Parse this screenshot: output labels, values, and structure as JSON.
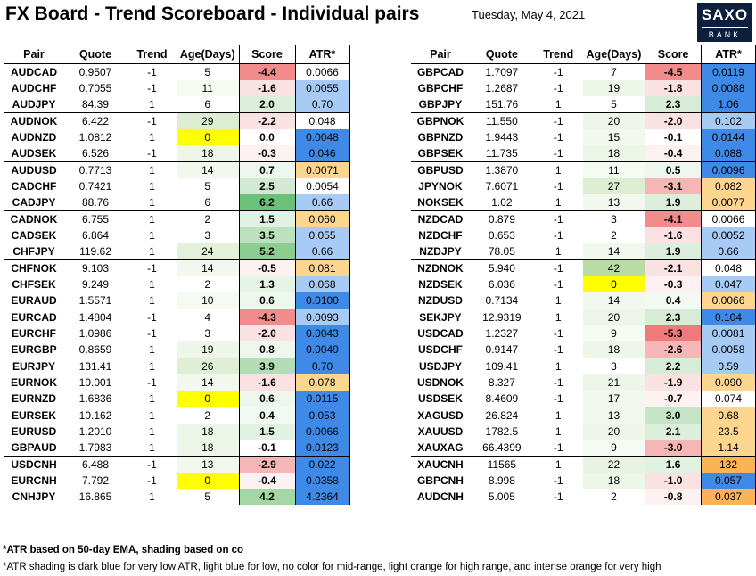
{
  "title": "FX Board - Trend Scoreboard - Individual pairs",
  "date": "Tuesday, May 4, 2021",
  "logo": {
    "line1": "SAXO",
    "line2": "BANK"
  },
  "headers": [
    "Pair",
    "Quote",
    "Trend",
    "Age(Days)",
    "Score",
    "ATR*"
  ],
  "colors": {
    "score_red_strong": "#f28b8b",
    "score_red_mid": "#f6b6b6",
    "score_red_light": "#fbe2e2",
    "score_green_strong": "#6cc07a",
    "score_green_mid": "#a3d7a4",
    "score_green_light": "#dcefdc",
    "atr_dark_blue": "#3f8ae6",
    "atr_light_blue": "#a7cbf5",
    "atr_light_orange": "#fcd58e",
    "atr_orange": "#fbb455",
    "age_yellow": "#ffff00"
  },
  "left_table": [
    {
      "pair": "AUDCAD",
      "quote": "0.9507",
      "trend": "-1",
      "age": "5",
      "score": "-4.4",
      "atr": "0.0066",
      "score_bg": "#f28b8b",
      "atr_bg": "#ffffff",
      "age_bg": "#ffffff"
    },
    {
      "pair": "AUDCHF",
      "quote": "0.7055",
      "trend": "-1",
      "age": "11",
      "score": "-1.6",
      "atr": "0.0055",
      "score_bg": "#fbe2e2",
      "atr_bg": "#a7cbf5",
      "age_bg": "#f5faf3"
    },
    {
      "pair": "AUDJPY",
      "quote": "84.39",
      "trend": "1",
      "age": "6",
      "score": "2.0",
      "atr": "0.70",
      "score_bg": "#dcefdc",
      "atr_bg": "#a7cbf5",
      "age_bg": "#ffffff"
    },
    {
      "pair": "AUDNOK",
      "quote": "6.422",
      "trect": "",
      "trend": "-1",
      "age": "29",
      "score": "-2.2",
      "atr": "0.048",
      "score_bg": "#fbe2e2",
      "atr_bg": "#ffffff",
      "age_bg": "#dcedd2"
    },
    {
      "pair": "AUDNZD",
      "quote": "1.0812",
      "trend": "1",
      "age": "0",
      "score": "0.0",
      "atr": "0.0048",
      "score_bg": "#ffffff",
      "atr_bg": "#3f8ae6",
      "age_bg": "#ffff00"
    },
    {
      "pair": "AUDSEK",
      "quote": "6.526",
      "trend": "-1",
      "age": "18",
      "score": "-0.3",
      "atr": "0.046",
      "score_bg": "#fdf1f1",
      "atr_bg": "#3f8ae6",
      "age_bg": "#eef6ea"
    },
    {
      "pair": "AUDUSD",
      "quote": "0.7713",
      "trend": "1",
      "age": "14",
      "score": "0.7",
      "atr": "0.0071",
      "score_bg": "#eef7ee",
      "atr_bg": "#fcd58e",
      "age_bg": "#f2f8ee"
    },
    {
      "pair": "CADCHF",
      "quote": "0.7421",
      "trend": "1",
      "age": "5",
      "score": "2.5",
      "atr": "0.0054",
      "score_bg": "#d2ead3",
      "atr_bg": "#ffffff",
      "age_bg": "#ffffff"
    },
    {
      "pair": "CADJPY",
      "quote": "88.76",
      "trend": "1",
      "age": "6",
      "score": "6.2",
      "atr": "0.66",
      "score_bg": "#6cc07a",
      "atr_bg": "#a7cbf5",
      "age_bg": "#ffffff"
    },
    {
      "pair": "CADNOK",
      "quote": "6.755",
      "trend": "1",
      "age": "2",
      "score": "1.5",
      "atr": "0.060",
      "score_bg": "#e2f2e2",
      "atr_bg": "#fcd58e",
      "age_bg": "#ffffff"
    },
    {
      "pair": "CADSEK",
      "quote": "6.864",
      "trend": "1",
      "age": "3",
      "score": "3.5",
      "atr": "0.055",
      "score_bg": "#bce1bd",
      "atr_bg": "#a7cbf5",
      "age_bg": "#ffffff"
    },
    {
      "pair": "CHFJPY",
      "quote": "119.62",
      "trend": "1",
      "age": "24",
      "score": "5.2",
      "atr": "0.66",
      "score_bg": "#8ccd92",
      "atr_bg": "#a7cbf5",
      "age_bg": "#e3f0da"
    },
    {
      "pair": "CHFNOK",
      "quote": "9.103",
      "trend": "-1",
      "age": "14",
      "score": "-0.5",
      "atr": "0.081",
      "score_bg": "#fdf1f1",
      "atr_bg": "#fcd58e",
      "age_bg": "#f2f8ee"
    },
    {
      "pair": "CHFSEK",
      "quote": "9.249",
      "trend": "1",
      "age": "2",
      "score": "1.3",
      "atr": "0.068",
      "score_bg": "#e6f4e6",
      "atr_bg": "#a7cbf5",
      "age_bg": "#ffffff"
    },
    {
      "pair": "EURAUD",
      "quote": "1.5571",
      "trend": "1",
      "age": "10",
      "score": "0.6",
      "atr": "0.0100",
      "score_bg": "#eef7ee",
      "atr_bg": "#3f8ae6",
      "age_bg": "#f5faf3"
    },
    {
      "pair": "EURCAD",
      "quote": "1.4804",
      "trend": "-1",
      "age": "4",
      "score": "-4.3",
      "atr": "0.0093",
      "score_bg": "#f28b8b",
      "atr_bg": "#a7cbf5",
      "age_bg": "#ffffff"
    },
    {
      "pair": "EURCHF",
      "quote": "1.0986",
      "trend": "-1",
      "age": "3",
      "score": "-2.0",
      "atr": "0.0043",
      "score_bg": "#fbe2e2",
      "atr_bg": "#3f8ae6",
      "age_bg": "#ffffff"
    },
    {
      "pair": "EURGBP",
      "quote": "0.8659",
      "trend": "1",
      "age": "19",
      "score": "0.8",
      "atr": "0.0049",
      "score_bg": "#eef7ee",
      "atr_bg": "#3f8ae6",
      "age_bg": "#eef6ea"
    },
    {
      "pair": "EURJPY",
      "quote": "131.41",
      "trend": "1",
      "age": "26",
      "score": "3.9",
      "atr": "0.70",
      "score_bg": "#b3ddb4",
      "atr_bg": "#3f8ae6",
      "age_bg": "#e0eed6"
    },
    {
      "pair": "EURNOK",
      "quote": "10.001",
      "trend": "-1",
      "age": "14",
      "score": "-1.6",
      "atr": "0.078",
      "score_bg": "#fbe2e2",
      "atr_bg": "#fcd58e",
      "age_bg": "#f2f8ee"
    },
    {
      "pair": "EURNZD",
      "quote": "1.6836",
      "trend": "1",
      "age": "0",
      "score": "0.6",
      "atr": "0.0115",
      "score_bg": "#eef7ee",
      "atr_bg": "#3f8ae6",
      "age_bg": "#ffff00"
    },
    {
      "pair": "EURSEK",
      "quote": "10.162",
      "trend": "1",
      "age": "2",
      "score": "0.4",
      "atr": "0.053",
      "score_bg": "#f2f9f2",
      "atr_bg": "#3f8ae6",
      "age_bg": "#ffffff"
    },
    {
      "pair": "EURUSD",
      "quote": "1.2010",
      "trend": "1",
      "age": "18",
      "score": "1.5",
      "atr": "0.0066",
      "score_bg": "#e2f2e2",
      "atr_bg": "#3f8ae6",
      "age_bg": "#eef6ea"
    },
    {
      "pair": "GBPAUD",
      "quote": "1.7983",
      "trend": "1",
      "age": "18",
      "score": "-0.1",
      "atr": "0.0123",
      "score_bg": "#ffffff",
      "atr_bg": "#3f8ae6",
      "age_bg": "#eef6ea"
    },
    {
      "pair": "USDCNH",
      "quote": "6.488",
      "trend": "-1",
      "age": "13",
      "score": "-2.9",
      "atr": "0.022",
      "score_bg": "#f6b6b6",
      "atr_bg": "#3f8ae6",
      "age_bg": "#f2f8ee"
    },
    {
      "pair": "EURCNH",
      "quote": "7.792",
      "trend": "-1",
      "age": "0",
      "score": "-0.4",
      "atr": "0.0358",
      "score_bg": "#fdf1f1",
      "atr_bg": "#3f8ae6",
      "age_bg": "#ffff00"
    },
    {
      "pair": "CNHJPY",
      "quote": "16.865",
      "trend": "1",
      "age": "5",
      "score": "4.2",
      "atr": "4.2364",
      "score_bg": "#a3d7a4",
      "atr_bg": "#3f8ae6",
      "age_bg": "#ffffff"
    }
  ],
  "right_table": [
    {
      "pair": "GBPCAD",
      "quote": "1.7097",
      "trend": "-1",
      "age": "7",
      "score": "-4.5",
      "atr": "0.0119",
      "score_bg": "#f28b8b",
      "atr_bg": "#3f8ae6",
      "age_bg": "#ffffff"
    },
    {
      "pair": "GBPCHF",
      "quote": "1.2687",
      "trend": "-1",
      "age": "19",
      "score": "-1.8",
      "atr": "0.0088",
      "score_bg": "#fbe2e2",
      "atr_bg": "#3f8ae6",
      "age_bg": "#eef6ea"
    },
    {
      "pair": "GBPJPY",
      "quote": "151.76",
      "trend": "1",
      "age": "5",
      "score": "2.3",
      "atr": "1.06",
      "score_bg": "#d6ecd7",
      "atr_bg": "#3f8ae6",
      "age_bg": "#ffffff"
    },
    {
      "pair": "GBPNOK",
      "quote": "11.550",
      "trend": "-1",
      "age": "20",
      "score": "-2.0",
      "atr": "0.102",
      "score_bg": "#fbe2e2",
      "atr_bg": "#a7cbf5",
      "age_bg": "#eef6ea"
    },
    {
      "pair": "GBPNZD",
      "quote": "1.9443",
      "trend": "-1",
      "age": "15",
      "score": "-0.1",
      "atr": "0.0144",
      "score_bg": "#ffffff",
      "atr_bg": "#3f8ae6",
      "age_bg": "#f2f8ee"
    },
    {
      "pair": "GBPSEK",
      "quote": "11.735",
      "trend": "-1",
      "age": "18",
      "score": "-0.4",
      "atr": "0.088",
      "score_bg": "#fdf1f1",
      "atr_bg": "#3f8ae6",
      "age_bg": "#eef6ea"
    },
    {
      "pair": "GBPUSD",
      "quote": "1.3870",
      "trend": "1",
      "age": "11",
      "score": "0.5",
      "atr": "0.0096",
      "score_bg": "#eef7ee",
      "atr_bg": "#3f8ae6",
      "age_bg": "#f5faf3"
    },
    {
      "pair": "JPYNOK",
      "quote": "7.6071",
      "trend": "-1",
      "age": "27",
      "score": "-3.1",
      "atr": "0.082",
      "score_bg": "#f6b6b6",
      "atr_bg": "#fcd58e",
      "age_bg": "#dcedd2"
    },
    {
      "pair": "NOKSEK",
      "quote": "1.02",
      "trend": "1",
      "age": "13",
      "score": "1.9",
      "atr": "0.0077",
      "score_bg": "#dcefdc",
      "atr_bg": "#fcd58e",
      "age_bg": "#f2f8ee"
    },
    {
      "pair": "NZDCAD",
      "quote": "0.879",
      "trend": "-1",
      "age": "3",
      "score": "-4.1",
      "atr": "0.0066",
      "score_bg": "#f28b8b",
      "atr_bg": "#ffffff",
      "age_bg": "#ffffff"
    },
    {
      "pair": "NZDCHF",
      "quote": "0.653",
      "trend": "-1",
      "age": "2",
      "score": "-1.6",
      "atr": "0.0052",
      "score_bg": "#fbe2e2",
      "atr_bg": "#a7cbf5",
      "age_bg": "#ffffff"
    },
    {
      "pair": "NZDJPY",
      "quote": "78.05",
      "trend": "1",
      "age": "14",
      "score": "1.9",
      "atr": "0.66",
      "score_bg": "#dcefdc",
      "atr_bg": "#a7cbf5",
      "age_bg": "#f2f8ee"
    },
    {
      "pair": "NZDNOK",
      "quote": "5.940",
      "trend": "-1",
      "age": "42",
      "score": "-2.1",
      "atr": "0.048",
      "score_bg": "#fbe2e2",
      "atr_bg": "#ffffff",
      "age_bg": "#b9dca5"
    },
    {
      "pair": "NZDSEK",
      "quote": "6.036",
      "trend": "-1",
      "age": "0",
      "score": "-0.3",
      "atr": "0.047",
      "score_bg": "#fdf1f1",
      "atr_bg": "#a7cbf5",
      "age_bg": "#ffff00"
    },
    {
      "pair": "NZDUSD",
      "quote": "0.7134",
      "trend": "1",
      "age": "14",
      "score": "0.4",
      "atr": "0.0066",
      "score_bg": "#f2f9f2",
      "atr_bg": "#fcd58e",
      "age_bg": "#f2f8ee"
    },
    {
      "pair": "SEKJPY",
      "quote": "12.9319",
      "trend": "1",
      "age": "20",
      "score": "2.3",
      "atr": "0.104",
      "score_bg": "#d6ecd7",
      "atr_bg": "#3f8ae6",
      "age_bg": "#eef6ea"
    },
    {
      "pair": "USDCAD",
      "quote": "1.2327",
      "trend": "-1",
      "age": "9",
      "score": "-5.3",
      "atr": "0.0081",
      "score_bg": "#f07a7a",
      "atr_bg": "#a7cbf5",
      "age_bg": "#f5faf3"
    },
    {
      "pair": "USDCHF",
      "quote": "0.9147",
      "trend": "-1",
      "age": "18",
      "score": "-2.6",
      "atr": "0.0058",
      "score_bg": "#f6b6b6",
      "atr_bg": "#a7cbf5",
      "age_bg": "#eef6ea"
    },
    {
      "pair": "USDJPY",
      "quote": "109.41",
      "trend": "1",
      "age": "3",
      "score": "2.2",
      "atr": "0.59",
      "score_bg": "#d6ecd7",
      "atr_bg": "#a7cbf5",
      "age_bg": "#ffffff"
    },
    {
      "pair": "USDNOK",
      "quote": "8.327",
      "trend": "-1",
      "age": "21",
      "score": "-1.9",
      "atr": "0.090",
      "score_bg": "#fbe2e2",
      "atr_bg": "#fcd58e",
      "age_bg": "#eef6ea"
    },
    {
      "pair": "USDSEK",
      "quote": "8.4609",
      "trend": "-1",
      "age": "17",
      "score": "-0.7",
      "atr": "0.074",
      "score_bg": "#fdf1f1",
      "atr_bg": "#ffffff",
      "age_bg": "#f2f8ee"
    },
    {
      "pair": "XAGUSD",
      "quote": "26.824",
      "trend": "1",
      "age": "13",
      "score": "3.0",
      "atr": "0.68",
      "score_bg": "#c6e5c7",
      "atr_bg": "#fcd58e",
      "age_bg": "#f2f8ee"
    },
    {
      "pair": "XAUUSD",
      "quote": "1782.5",
      "trend": "1",
      "age": "20",
      "score": "2.1",
      "atr": "23.5",
      "score_bg": "#dcefdc",
      "atr_bg": "#fcd58e",
      "age_bg": "#eef6ea"
    },
    {
      "pair": "XAUXAG",
      "quote": "66.4399",
      "trend": "-1",
      "age": "9",
      "score": "-3.0",
      "atr": "1.14",
      "score_bg": "#f6b6b6",
      "atr_bg": "#fcd58e",
      "age_bg": "#f5faf3"
    },
    {
      "pair": "XAUCNH",
      "quote": "11565",
      "trend": "1",
      "age": "22",
      "score": "1.6",
      "atr": "132",
      "score_bg": "#e2f2e2",
      "atr_bg": "#fbb455",
      "age_bg": "#e8f3e1"
    },
    {
      "pair": "GBPCNH",
      "quote": "8.998",
      "trend": "-1",
      "age": "18",
      "score": "-1.0",
      "atr": "0.057",
      "score_bg": "#fbe2e2",
      "atr_bg": "#3f8ae6",
      "age_bg": "#eef6ea"
    },
    {
      "pair": "AUDCNH",
      "quote": "5.005",
      "trend": "-1",
      "age": "2",
      "score": "-0.8",
      "atr": "0.037",
      "score_bg": "#fdf1f1",
      "atr_bg": "#fbb455",
      "age_bg": "#ffffff"
    }
  ],
  "footnote1": "*ATR based on 50-day EMA, shading based on co",
  "footnote2": "*ATR shading is dark blue for very low ATR, light blue for low, no color for mid-range, light orange for high range, and intense orange for very high"
}
